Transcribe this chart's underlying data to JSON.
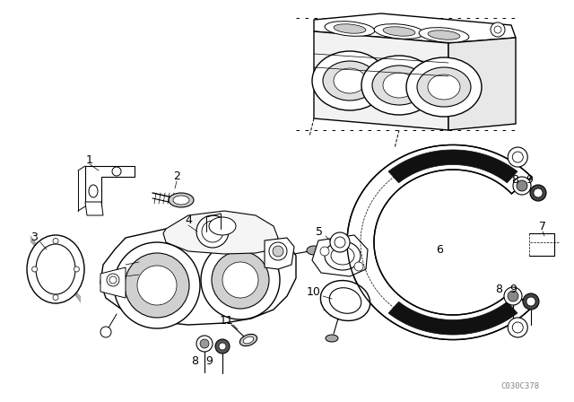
{
  "background_color": "#ffffff",
  "line_color": "#000000",
  "fig_width": 6.4,
  "fig_height": 4.48,
  "dpi": 100,
  "watermark": "C030C378",
  "watermark_fontsize": 6.5
}
